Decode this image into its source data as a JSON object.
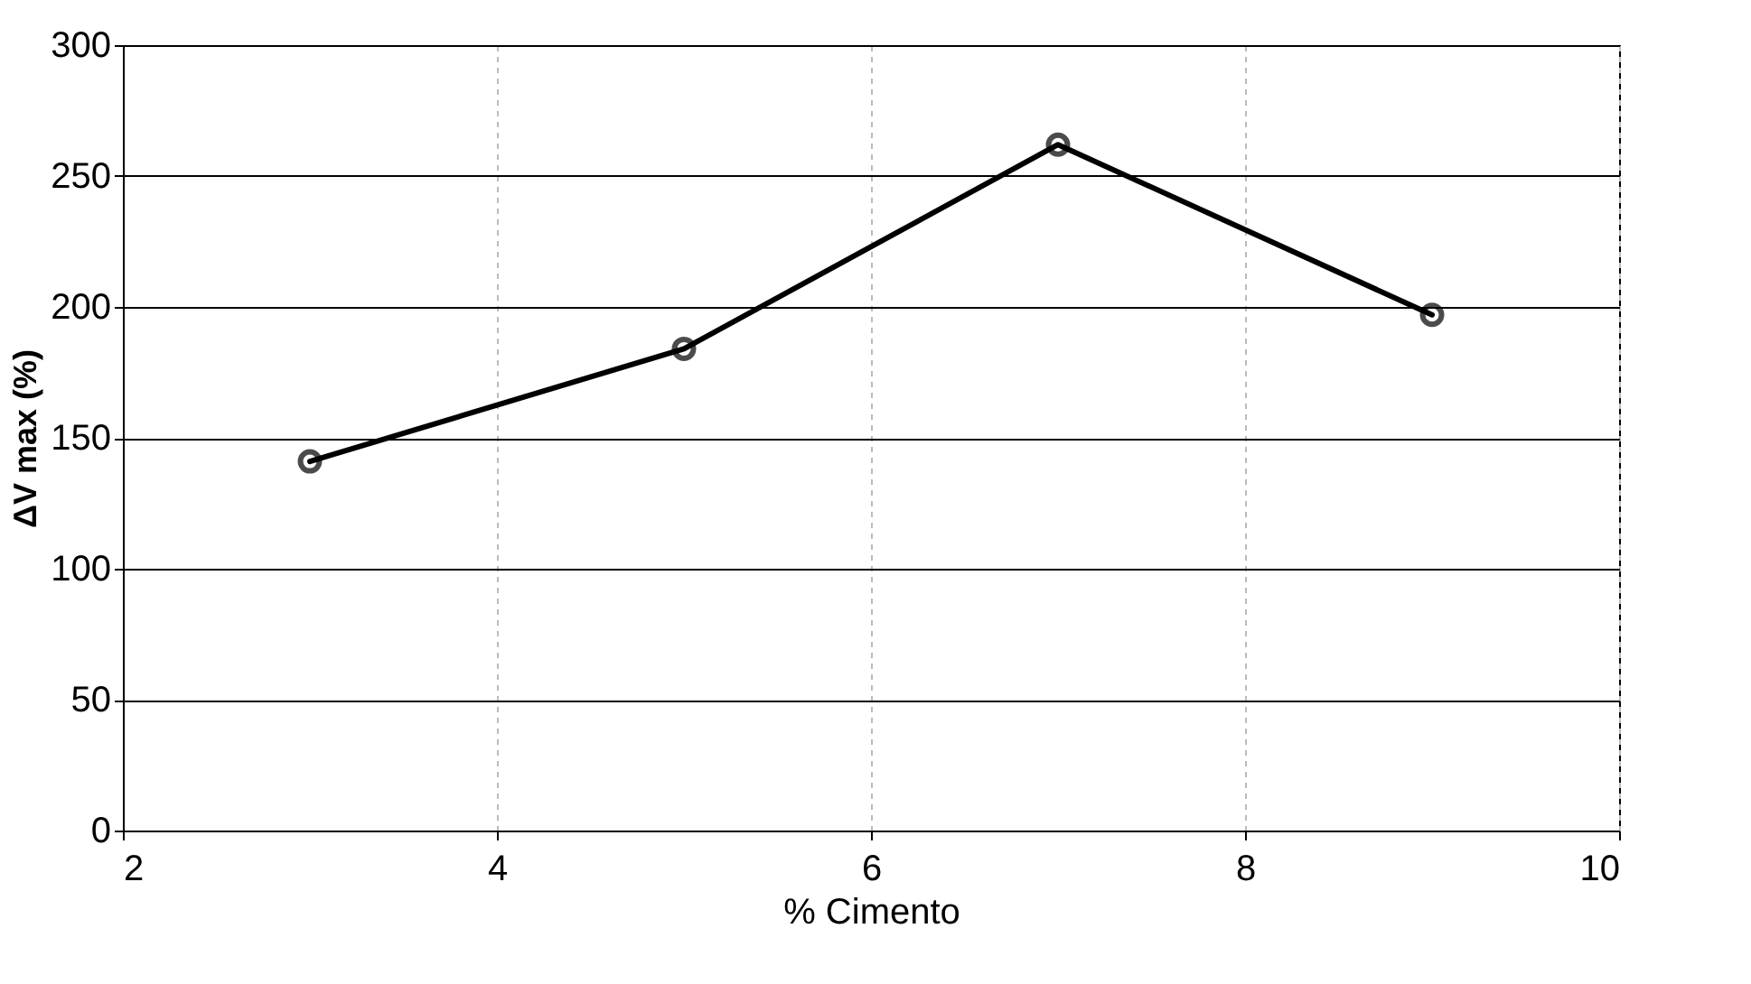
{
  "chart_data": {
    "type": "line",
    "xlabel": "% Cimento",
    "ylabel": "ΔV max (%)",
    "x": [
      3,
      5,
      7,
      9
    ],
    "series": [
      {
        "color": "#000000",
        "values": [
          141,
          184,
          262,
          197
        ]
      }
    ],
    "xlim": [
      2,
      10
    ],
    "xticks": [
      2,
      4,
      6,
      8,
      10
    ],
    "ylim": [
      0,
      300
    ],
    "yticks": [
      0,
      50,
      100,
      150,
      200,
      250,
      300
    ],
    "grid": true,
    "marker": "circle",
    "line_style": "solid"
  }
}
